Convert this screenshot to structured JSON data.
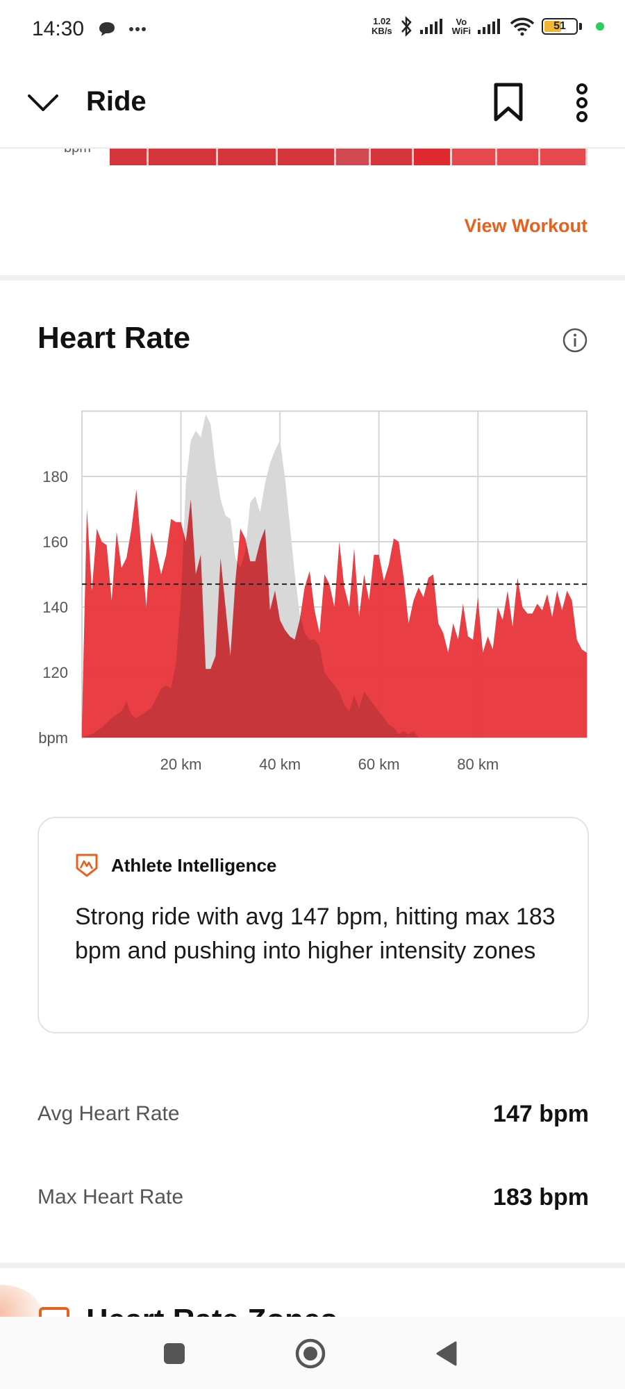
{
  "status_bar": {
    "time": "14:30",
    "net_speed_value": "1.02",
    "net_speed_unit": "KB/s",
    "vowifi_top": "Vo",
    "vowifi_bottom": "WiFi",
    "battery_percent": "51"
  },
  "header": {
    "title": "Ride"
  },
  "workout": {
    "bpm_label_cut": "bpm",
    "view_workout_label": "View Workout"
  },
  "heart_rate": {
    "title": "Heart Rate"
  },
  "chart_data": {
    "type": "area",
    "x_tick_labels": [
      "20 km",
      "40 km",
      "60 km",
      "80 km"
    ],
    "y_tick_labels": [
      "bpm",
      "120",
      "140",
      "160",
      "180"
    ],
    "x_ticks": [
      20,
      40,
      60,
      80
    ],
    "y_ticks": [
      120,
      140,
      160,
      180
    ],
    "xlim": [
      0,
      102
    ],
    "ylim": [
      100,
      200
    ],
    "grid": true,
    "avg_line": 147,
    "series": [
      {
        "color": "#d8d8d8",
        "x": [
          0,
          2,
          4,
          6,
          8,
          9,
          10,
          11,
          12,
          14,
          16,
          17,
          18,
          19,
          20,
          21,
          22,
          23,
          24,
          25,
          26,
          27,
          28,
          29,
          30,
          31,
          32,
          33,
          34,
          35,
          36,
          37,
          38,
          39,
          40,
          41,
          42,
          43,
          44,
          45,
          46,
          47,
          48,
          49,
          50,
          51,
          52,
          53,
          54,
          55,
          56,
          57,
          58,
          59,
          60,
          61,
          62,
          63,
          64,
          65,
          66,
          67,
          68,
          70,
          102
        ],
        "y": [
          100,
          101,
          103,
          106,
          108,
          111,
          107,
          106,
          107,
          109,
          115,
          116,
          115,
          123,
          142,
          178,
          191,
          194,
          192,
          199,
          196,
          183,
          173,
          168,
          167,
          155,
          152,
          157,
          172,
          174,
          169,
          178,
          184,
          188,
          191,
          180,
          165,
          150,
          138,
          132,
          130,
          130,
          128,
          120,
          118,
          116,
          114,
          110,
          108,
          113,
          109,
          114,
          112,
          110,
          108,
          106,
          104,
          103,
          101,
          102,
          101,
          102,
          100,
          100,
          100
        ]
      },
      {
        "color": "#e8383d",
        "x": [
          0,
          1,
          2,
          3,
          4,
          5,
          6,
          7,
          8,
          9,
          10,
          11,
          12,
          13,
          14,
          15,
          16,
          17,
          18,
          19,
          20,
          21,
          22,
          23,
          24,
          25,
          26,
          27,
          28,
          29,
          30,
          31,
          32,
          33,
          34,
          35,
          36,
          37,
          38,
          39,
          40,
          41,
          42,
          43,
          44,
          45,
          46,
          47,
          48,
          49,
          50,
          51,
          52,
          53,
          54,
          55,
          56,
          57,
          58,
          59,
          60,
          61,
          62,
          63,
          64,
          65,
          66,
          67,
          68,
          69,
          70,
          71,
          72,
          73,
          74,
          75,
          76,
          77,
          78,
          79,
          80,
          81,
          82,
          83,
          84,
          85,
          86,
          87,
          88,
          89,
          90,
          91,
          92,
          93,
          94,
          95,
          96,
          97,
          98,
          99,
          100,
          101,
          102
        ],
        "y": [
          104,
          170,
          145,
          164,
          160,
          159,
          142,
          163,
          152,
          155,
          164,
          176,
          158,
          140,
          163,
          157,
          150,
          156,
          167,
          166,
          166,
          160,
          173,
          150,
          156,
          121,
          121,
          125,
          155,
          140,
          125,
          148,
          164,
          161,
          154,
          154,
          160,
          164,
          139,
          145,
          136,
          133,
          131,
          130,
          136,
          146,
          151,
          139,
          132,
          150,
          147,
          140,
          160,
          146,
          140,
          158,
          137,
          150,
          142,
          156,
          156,
          148,
          153,
          161,
          160,
          149,
          135,
          142,
          146,
          143,
          149,
          150,
          135,
          132,
          126,
          135,
          130,
          141,
          131,
          130,
          143,
          126,
          131,
          127,
          140,
          136,
          145,
          134,
          149,
          140,
          138,
          138,
          141,
          139,
          144,
          137,
          145,
          139,
          145,
          142,
          130,
          127,
          126
        ]
      }
    ]
  },
  "athlete_intelligence": {
    "title": "Athlete Intelligence",
    "summary": "Strong ride with avg 147 bpm, hitting max 183 bpm and pushing into higher intensity zones"
  },
  "stats": [
    {
      "label": "Avg Heart Rate",
      "value": "147 bpm"
    },
    {
      "label": "Max Heart Rate",
      "value": "183 bpm"
    }
  ],
  "next_section": {
    "peek_title": "Heart Rate Zones"
  },
  "colors": {
    "accent": "#e8601c",
    "hr_area": "#e8383d",
    "elevation_area": "#d8d8d8",
    "zone_red": "#d9363c"
  }
}
